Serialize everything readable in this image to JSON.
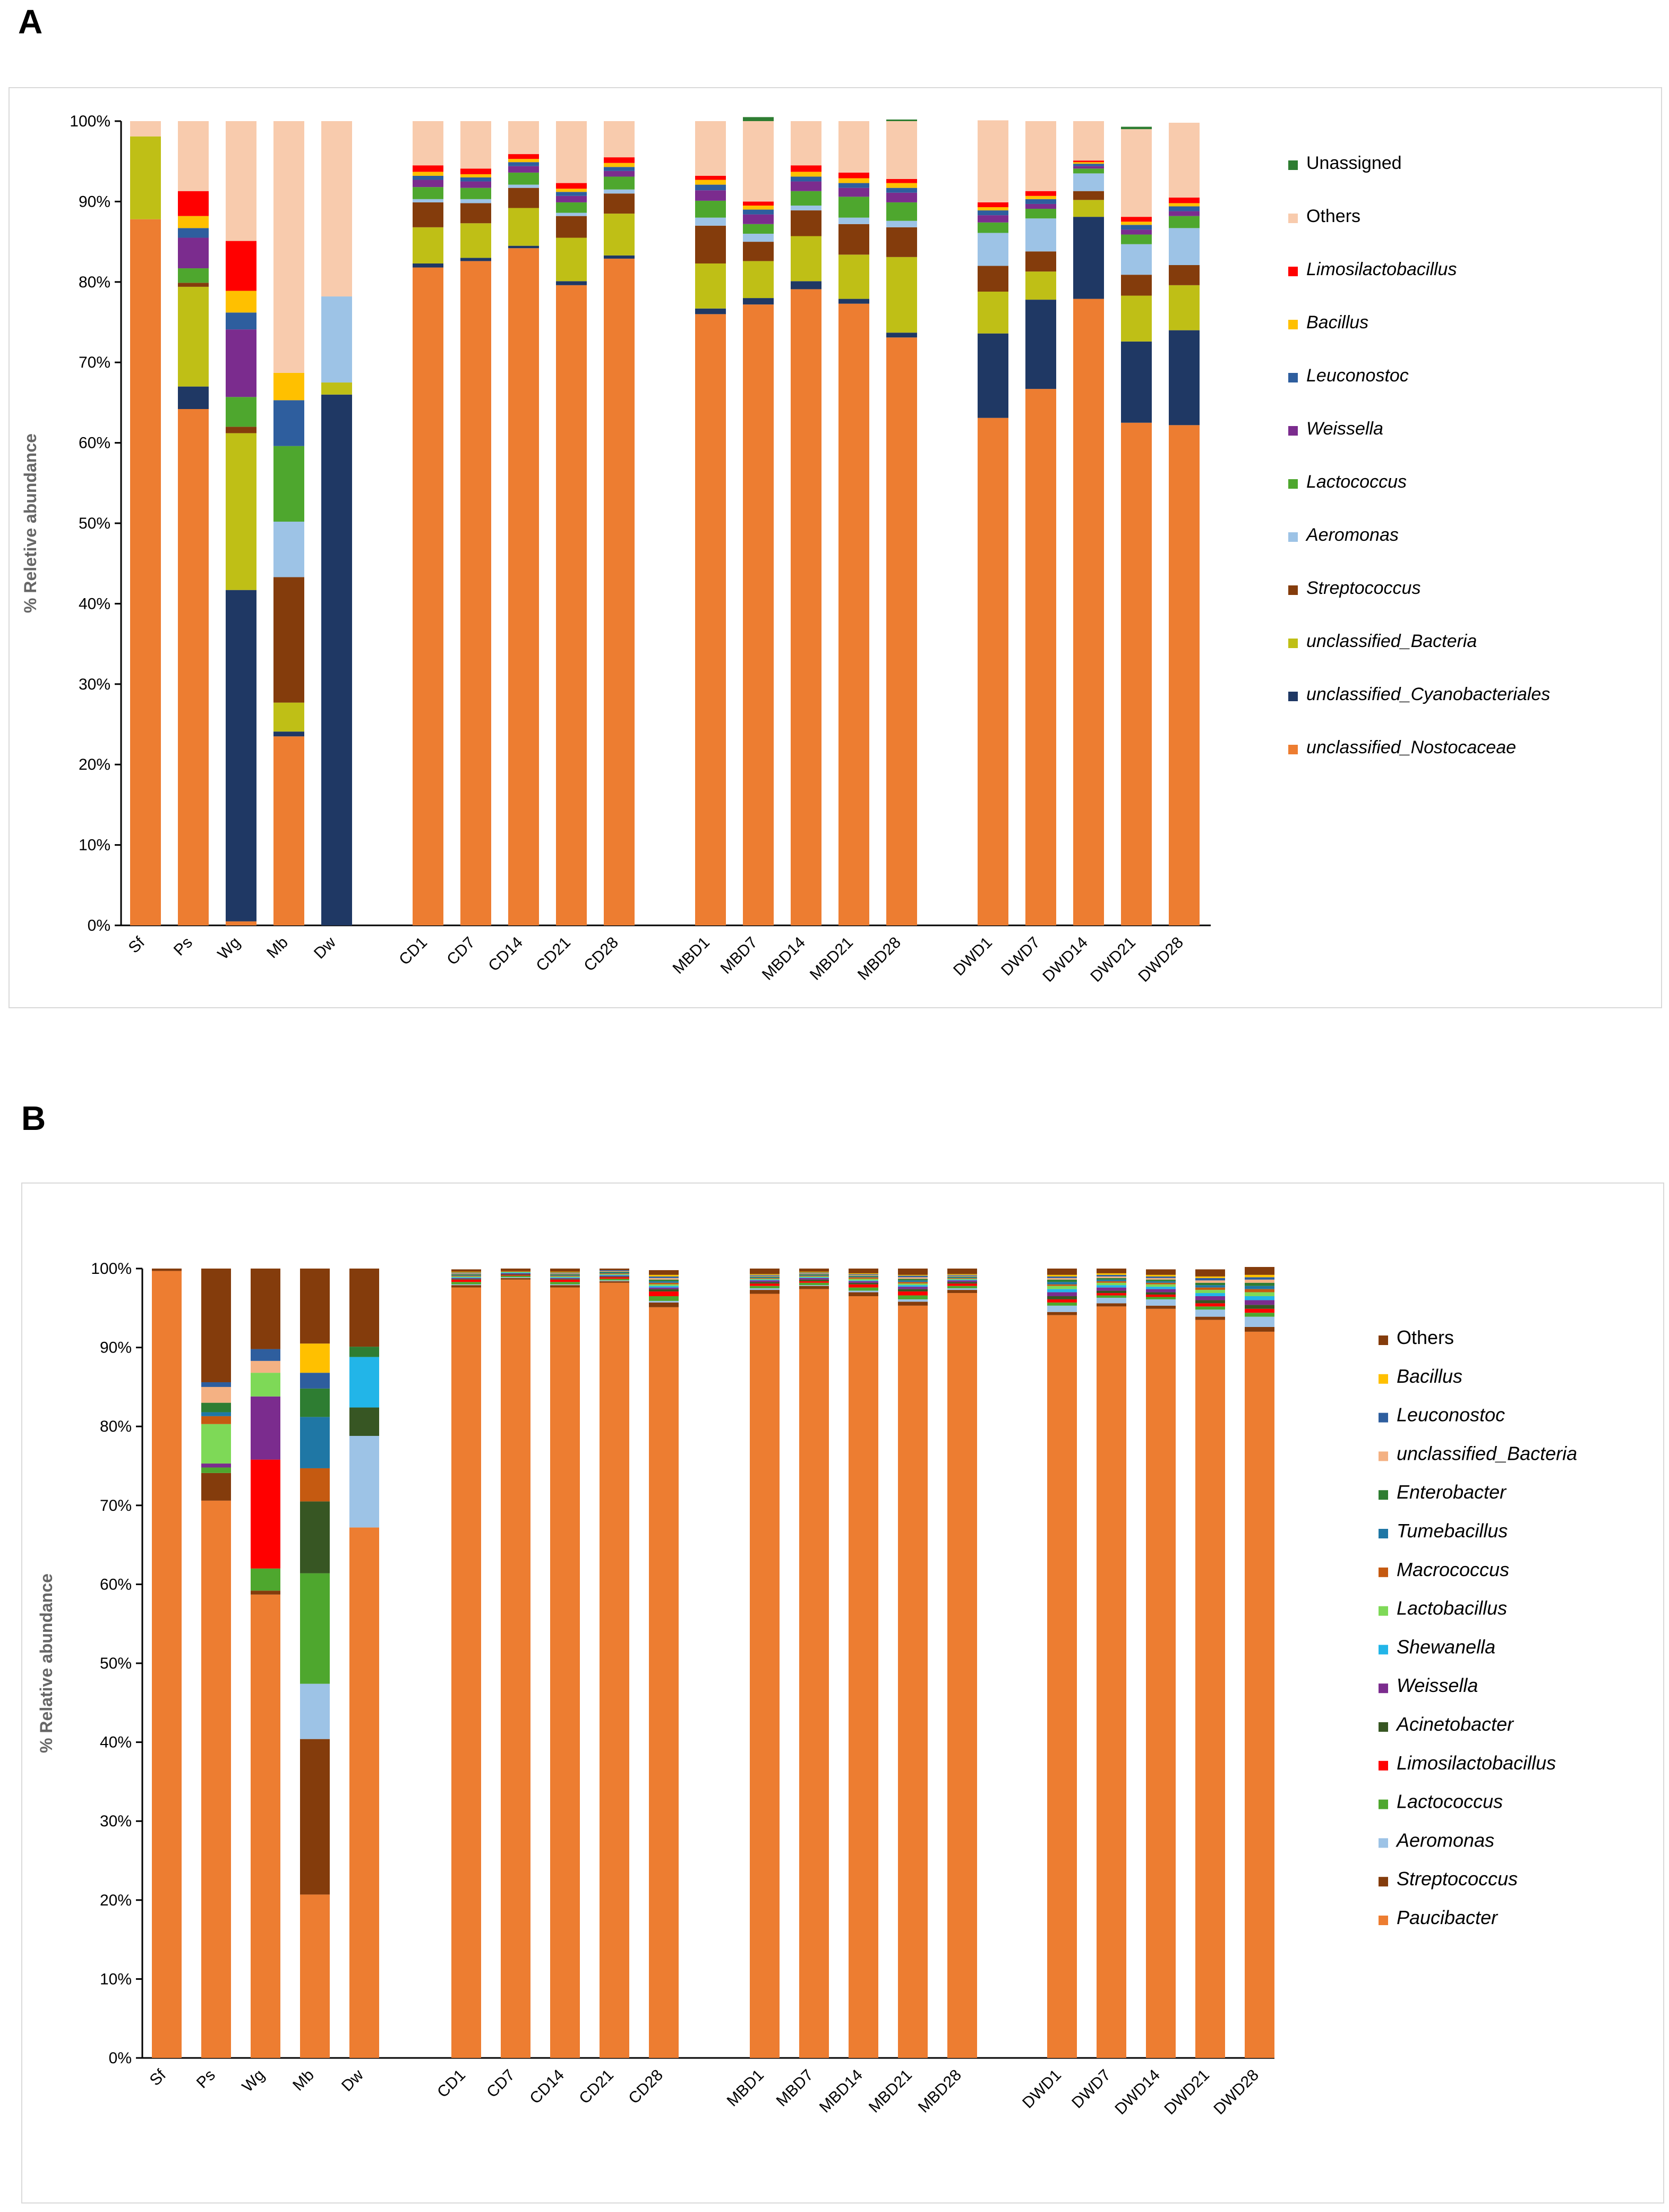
{
  "panels": [
    {
      "letter": "A"
    },
    {
      "letter": "B"
    }
  ],
  "chart_data": [
    {
      "type": "bar",
      "stacked": true,
      "ylabel": "% Reletive abundance",
      "ylim": [
        0,
        100
      ],
      "yticks": [
        "0%",
        "10%",
        "20%",
        "30%",
        "40%",
        "50%",
        "60%",
        "70%",
        "80%",
        "90%",
        "100%"
      ],
      "categories": [
        "Sf",
        "Ps",
        "Wg",
        "Mb",
        "Dw",
        "CD1",
        "CD7",
        "CD14",
        "CD21",
        "CD28",
        "MBD1",
        "MBD7",
        "MBD14",
        "MBD21",
        "MBD28",
        "DWD1",
        "DWD7",
        "DWD14",
        "DWD21",
        "DWD28"
      ],
      "legend_title": "",
      "series": [
        {
          "name": "unclassified_Nostocaceae",
          "color": "#ED7D31",
          "italic": true,
          "values": [
            87.8,
            64.2,
            0.5,
            23.5,
            0,
            81.8,
            82.6,
            84.2,
            79.6,
            82.9,
            76.0,
            77.2,
            79.1,
            77.3,
            73.1,
            63.1,
            66.7,
            77.9,
            62.5,
            62.2
          ]
        },
        {
          "name": "unclassified_Cyanobacteriales",
          "color": "#1F3864",
          "italic": true,
          "values": [
            0,
            2.8,
            41.2,
            0.6,
            66,
            0.5,
            0.4,
            0.3,
            0.5,
            0.4,
            0.7,
            0.8,
            1.0,
            0.6,
            0.6,
            10.5,
            11.1,
            10.2,
            10.1,
            11.8
          ]
        },
        {
          "name": "unclassified_Bacteria",
          "color": "#BFBF16",
          "italic": true,
          "values": [
            10.3,
            12.4,
            19.5,
            3.6,
            1.5,
            4.5,
            4.3,
            4.7,
            5.4,
            5.2,
            5.6,
            4.6,
            5.6,
            5.5,
            9.4,
            5.2,
            3.5,
            2.1,
            5.7,
            5.6
          ]
        },
        {
          "name": "Streptococcus",
          "color": "#843C0C",
          "italic": true,
          "values": [
            0,
            0.5,
            0.8,
            15.6,
            0,
            3.1,
            2.5,
            2.5,
            2.7,
            2.5,
            4.7,
            2.4,
            3.2,
            3.8,
            3.7,
            3.2,
            2.5,
            1.1,
            2.6,
            2.5
          ]
        },
        {
          "name": "Aeromonas",
          "color": "#9DC3E6",
          "italic": true,
          "values": [
            0,
            0,
            0,
            6.9,
            10.7,
            0.4,
            0.5,
            0.4,
            0.4,
            0.5,
            1.0,
            1.0,
            0.6,
            0.8,
            0.8,
            4.1,
            4.1,
            2.2,
            3.8,
            4.6
          ]
        },
        {
          "name": "Lactococcus",
          "color": "#4EA72E",
          "italic": true,
          "values": [
            0,
            1.8,
            3.7,
            9.4,
            0,
            1.5,
            1.4,
            1.5,
            1.3,
            1.6,
            2.1,
            1.2,
            1.8,
            2.6,
            2.3,
            1.3,
            1.2,
            0.6,
            1.2,
            1.5
          ]
        },
        {
          "name": "Weissella",
          "color": "#7B2C8E",
          "italic": true,
          "values": [
            0,
            3.8,
            8.4,
            0,
            0,
            0.9,
            0.8,
            0.8,
            0.8,
            0.7,
            1.3,
            1.2,
            1.2,
            1.1,
            1.2,
            0.9,
            0.6,
            0.3,
            0.6,
            0.6
          ]
        },
        {
          "name": "Leuconostoc",
          "color": "#2E5E9E",
          "italic": true,
          "values": [
            0,
            1.2,
            2.1,
            5.7,
            0,
            0.5,
            0.5,
            0.5,
            0.5,
            0.5,
            0.7,
            0.6,
            0.6,
            0.6,
            0.6,
            0.6,
            0.6,
            0.3,
            0.6,
            0.6
          ]
        },
        {
          "name": "Bacillus",
          "color": "#FFC000",
          "italic": true,
          "values": [
            0,
            1.5,
            2.7,
            3.4,
            0,
            0.5,
            0.4,
            0.4,
            0.4,
            0.5,
            0.6,
            0.5,
            0.6,
            0.6,
            0.6,
            0.4,
            0.4,
            0.2,
            0.4,
            0.4
          ]
        },
        {
          "name": "Limosilactobacillus",
          "color": "#FF0000",
          "italic": true,
          "values": [
            0,
            3.1,
            6.2,
            0,
            0,
            0.8,
            0.7,
            0.6,
            0.7,
            0.7,
            0.5,
            0.5,
            0.8,
            0.7,
            0.5,
            0.6,
            0.6,
            0.2,
            0.6,
            0.7
          ]
        },
        {
          "name": "Others",
          "color": "#F8CBAD",
          "italic": false,
          "values": [
            1.9,
            8.7,
            14.9,
            31.3,
            21.8,
            5.5,
            5.9,
            4.1,
            7.7,
            4.5,
            6.8,
            10.0,
            5.5,
            6.4,
            7.2,
            10.2,
            8.7,
            4.9,
            10.9,
            9.3
          ]
        },
        {
          "name": "Unassigned",
          "color": "#2E7D32",
          "italic": false,
          "values": [
            0,
            0,
            0,
            0,
            0,
            0,
            0,
            0,
            0,
            0,
            0,
            0.5,
            0,
            0,
            0.2,
            0,
            0,
            0,
            0.3,
            0
          ]
        }
      ],
      "legend_order": [
        "Unassigned",
        "Others",
        "Limosilactobacillus",
        "Bacillus",
        "Leuconostoc",
        "Weissella",
        "Lactococcus",
        "Aeromonas",
        "Streptococcus",
        "unclassified_Bacteria",
        "unclassified_Cyanobacteriales",
        "unclassified_Nostocaceae"
      ]
    },
    {
      "type": "bar",
      "stacked": true,
      "ylabel": "% Relative abundance",
      "ylim": [
        0,
        100
      ],
      "yticks": [
        "0%",
        "10%",
        "20%",
        "30%",
        "40%",
        "50%",
        "60%",
        "70%",
        "80%",
        "90%",
        "100%"
      ],
      "categories": [
        "Sf",
        "Ps",
        "Wg",
        "Mb",
        "Dw",
        "CD1",
        "CD7",
        "CD14",
        "CD21",
        "CD28",
        "MBD1",
        "MBD7",
        "MBD14",
        "MBD21",
        "MBD28",
        "DWD1",
        "DWD7",
        "DWD14",
        "DWD21",
        "DWD28"
      ],
      "series": [
        {
          "name": "Paucibacter",
          "color": "#ED7D31",
          "italic": true,
          "values": [
            99.7,
            70.6,
            58.7,
            20.7,
            67.2,
            97.6,
            98.6,
            97.6,
            98.2,
            95.1,
            96.8,
            97.4,
            96.5,
            95.3,
            96.9,
            94.1,
            95.2,
            94.9,
            93.5,
            92.0
          ]
        },
        {
          "name": "Streptococcus",
          "color": "#843C0C",
          "italic": true,
          "values": [
            0,
            3.5,
            0.5,
            19.7,
            0,
            0.3,
            0.2,
            0.3,
            0.2,
            0.6,
            0.5,
            0.4,
            0.5,
            0.5,
            0.4,
            0.4,
            0.4,
            0.4,
            0.4,
            0.6
          ]
        },
        {
          "name": "Aeromonas",
          "color": "#9DC3E6",
          "italic": true,
          "values": [
            0,
            0,
            0,
            7.0,
            11.6,
            0.1,
            0.1,
            0.1,
            0.1,
            0.2,
            0.2,
            0.1,
            0.2,
            0.3,
            0.2,
            0.8,
            0.7,
            0.8,
            0.9,
            1.3
          ]
        },
        {
          "name": "Lactococcus",
          "color": "#4EA72E",
          "italic": true,
          "values": [
            0,
            0.7,
            2.8,
            14.0,
            0,
            0.3,
            0.2,
            0.3,
            0.2,
            0.6,
            0.3,
            0.3,
            0.4,
            0.5,
            0.3,
            0.4,
            0.3,
            0.3,
            0.4,
            0.5
          ]
        },
        {
          "name": "Limosilactobacillus",
          "color": "#FF0000",
          "italic": true,
          "values": [
            0,
            0,
            13.8,
            0,
            0,
            0.3,
            0.1,
            0.3,
            0.2,
            0.6,
            0.3,
            0.2,
            0.4,
            0.5,
            0.3,
            0.4,
            0.3,
            0.3,
            0.4,
            0.5
          ]
        },
        {
          "name": "Acinetobacter",
          "color": "#375623",
          "italic": true,
          "values": [
            0,
            0,
            0,
            9.1,
            3.6,
            0.1,
            0.1,
            0.1,
            0.1,
            0.3,
            0.2,
            0.2,
            0.2,
            0.3,
            0.2,
            0.4,
            0.3,
            0.3,
            0.4,
            0.5
          ]
        },
        {
          "name": "Weissella",
          "color": "#7B2C8E",
          "italic": true,
          "values": [
            0,
            0.5,
            8.0,
            0,
            0,
            0.1,
            0.1,
            0.1,
            0.1,
            0.2,
            0.2,
            0.2,
            0.2,
            0.3,
            0.2,
            0.5,
            0.4,
            0.4,
            0.5,
            0.6
          ]
        },
        {
          "name": "Shewanella",
          "color": "#22B5E8",
          "italic": true,
          "values": [
            0,
            0,
            0,
            0,
            6.4,
            0.1,
            0.1,
            0.1,
            0.1,
            0.2,
            0.1,
            0.1,
            0.1,
            0.2,
            0.1,
            0.4,
            0.3,
            0.3,
            0.4,
            0.5
          ]
        },
        {
          "name": "Lactobacillus",
          "color": "#7ED957",
          "italic": true,
          "values": [
            0,
            5.0,
            3.0,
            0,
            0,
            0.1,
            0.1,
            0.1,
            0.1,
            0.2,
            0.1,
            0.1,
            0.2,
            0.2,
            0.1,
            0.4,
            0.3,
            0.3,
            0.4,
            0.5
          ]
        },
        {
          "name": "Macrococcus",
          "color": "#C55A11",
          "italic": true,
          "values": [
            0,
            1.0,
            0,
            4.2,
            0,
            0.1,
            0.1,
            0.1,
            0.1,
            0.2,
            0.1,
            0.1,
            0.2,
            0.2,
            0.1,
            0.2,
            0.2,
            0.2,
            0.3,
            0.4
          ]
        },
        {
          "name": "Tumebacillus",
          "color": "#1F77A5",
          "italic": true,
          "values": [
            0,
            0.5,
            0,
            6.5,
            0,
            0.1,
            0,
            0.1,
            0.1,
            0.2,
            0.1,
            0.1,
            0.1,
            0.2,
            0.1,
            0.3,
            0.2,
            0.2,
            0.3,
            0.4
          ]
        },
        {
          "name": "Enterobacter",
          "color": "#2E7D32",
          "italic": true,
          "values": [
            0,
            1.2,
            0,
            3.6,
            1.3,
            0.1,
            0,
            0.1,
            0.1,
            0.2,
            0.1,
            0.1,
            0.1,
            0.2,
            0.1,
            0.3,
            0.2,
            0.2,
            0.3,
            0.4
          ]
        },
        {
          "name": "unclassified_Bacteria",
          "color": "#F4B183",
          "italic": true,
          "values": [
            0,
            2.0,
            1.5,
            0,
            0,
            0.1,
            0,
            0.1,
            0.1,
            0.2,
            0.1,
            0.1,
            0.1,
            0.2,
            0.1,
            0.2,
            0.2,
            0.2,
            0.3,
            0.4
          ]
        },
        {
          "name": "Leuconostoc",
          "color": "#2E5E9E",
          "italic": true,
          "values": [
            0,
            0.6,
            1.5,
            2.0,
            0,
            0.1,
            0,
            0.1,
            0.1,
            0.2,
            0.1,
            0.1,
            0.1,
            0.2,
            0.1,
            0.2,
            0.2,
            0.2,
            0.3,
            0.3
          ]
        },
        {
          "name": "Bacillus",
          "color": "#FFC000",
          "italic": true,
          "values": [
            0,
            0,
            0,
            3.7,
            0,
            0.1,
            0,
            0.1,
            0,
            0.2,
            0.1,
            0.1,
            0.1,
            0.1,
            0.1,
            0.2,
            0.2,
            0.2,
            0.2,
            0.3
          ]
        },
        {
          "name": "Others",
          "color": "#843C0C",
          "italic": false,
          "values": [
            0.3,
            14.4,
            10.2,
            9.5,
            9.9,
            0.3,
            0.3,
            0.4,
            0.2,
            0.6,
            0.7,
            0.4,
            0.6,
            0.8,
            0.7,
            0.8,
            0.6,
            0.7,
            0.9,
            1.0
          ]
        }
      ],
      "legend_order": [
        "Others",
        "Bacillus",
        "Leuconostoc",
        "unclassified_Bacteria",
        "Enterobacter",
        "Tumebacillus",
        "Macrococcus",
        "Lactobacillus",
        "Shewanella",
        "Weissella",
        "Acinetobacter",
        "Limosilactobacillus",
        "Lactococcus",
        "Aeromonas",
        "Streptococcus",
        "Paucibacter"
      ]
    }
  ]
}
